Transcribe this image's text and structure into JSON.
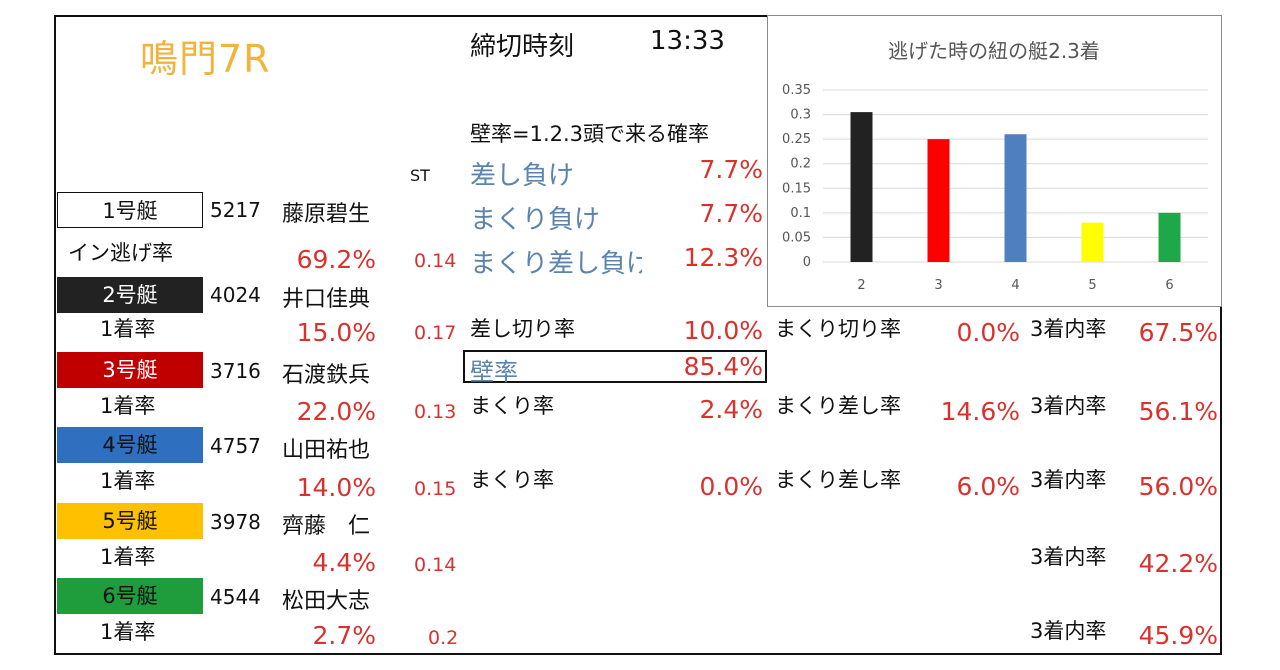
{
  "race_title": "鳴門7R",
  "deadline_label": "締切時刻",
  "deadline_time": "13:33",
  "wall_definition": "壁率=1.2.3頭で来る確率",
  "st_label": "ST",
  "lose": [
    {
      "label": "差し負け",
      "value": "7.7%"
    },
    {
      "label": "まくり負け",
      "value": "7.7%"
    },
    {
      "label": "まくり差し負け",
      "value": "12.3%"
    }
  ],
  "boats": [
    {
      "boat": "1号艇",
      "reg": "5217",
      "name": "藤原碧生",
      "rate_label": "イン逃げ率",
      "rate": "69.2%",
      "st": "0.14",
      "color": "#ffffff"
    },
    {
      "boat": "2号艇",
      "reg": "4024",
      "name": "井口佳典",
      "rate_label": "1着率",
      "rate": "15.0%",
      "st": "0.17",
      "color": "#222222"
    },
    {
      "boat": "3号艇",
      "reg": "3716",
      "name": "石渡鉄兵",
      "rate_label": "1着率",
      "rate": "22.0%",
      "st": "0.13",
      "color": "#c00000"
    },
    {
      "boat": "4号艇",
      "reg": "4757",
      "name": "山田祐也",
      "rate_label": "1着率",
      "rate": "14.0%",
      "st": "0.15",
      "color": "#2f6fbf"
    },
    {
      "boat": "5号艇",
      "reg": "3978",
      "name": "齊藤　仁",
      "rate_label": "1着率",
      "rate": "4.4%",
      "st": "0.14",
      "color": "#ffc000"
    },
    {
      "boat": "6号艇",
      "reg": "4544",
      "name": "松田大志",
      "rate_label": "1着率",
      "rate": "2.7%",
      "st": "0.2",
      "color": "#1f9c3c"
    }
  ],
  "boat2": {
    "sashi_label": "差し切り率",
    "sashi": "10.0%",
    "makuri_label": "まくり切り率",
    "makuri": "0.0%",
    "top3_label": "3着内率",
    "top3": "67.5%"
  },
  "wall": {
    "label": "壁率",
    "value": "85.4%"
  },
  "boat3": {
    "makuri_label": "まくり率",
    "makuri": "2.4%",
    "makurisashi_label": "まくり差し率",
    "makurisashi": "14.6%",
    "top3_label": "3着内率",
    "top3": "56.1%"
  },
  "boat4": {
    "makuri_label": "まくり率",
    "makuri": "0.0%",
    "makurisashi_label": "まくり差し率",
    "makurisashi": "6.0%",
    "top3_label": "3着内率",
    "top3": "56.0%"
  },
  "boat5": {
    "top3_label": "3着内率",
    "top3": "42.2%"
  },
  "boat6": {
    "top3_label": "3着内率",
    "top3": "45.9%"
  },
  "chart_data": {
    "type": "bar",
    "title": "逃げた時の紐の艇2.3着",
    "categories": [
      "2",
      "3",
      "4",
      "5",
      "6"
    ],
    "values": [
      0.305,
      0.25,
      0.26,
      0.08,
      0.1
    ],
    "colors": [
      "#222222",
      "#ff0000",
      "#4f7fbf",
      "#ffff00",
      "#1fa84a"
    ],
    "ylim": [
      0,
      0.35
    ],
    "yticks": [
      "0",
      "0.05",
      "0.1",
      "0.15",
      "0.2",
      "0.25",
      "0.3",
      "0.35"
    ],
    "grid": true
  }
}
